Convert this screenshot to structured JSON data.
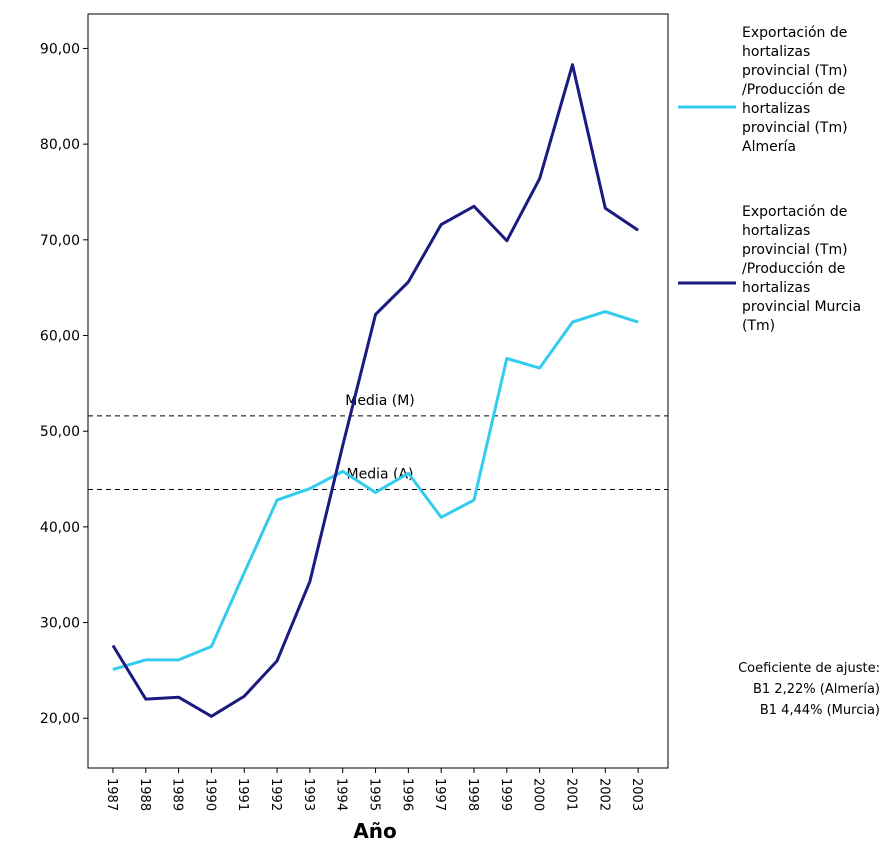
{
  "chart_data": {
    "type": "line",
    "x": [
      1987,
      1988,
      1989,
      1990,
      1991,
      1992,
      1993,
      1994,
      1995,
      1996,
      1997,
      1998,
      1999,
      2000,
      2001,
      2002,
      2003
    ],
    "series": [
      {
        "name": "Exportación de hortalizas provincial (Tm) /Producción de hortalizas provincial (Tm) Almería",
        "color": "#33ccee",
        "values": [
          25.1,
          26.1,
          26.1,
          27.5,
          35.2,
          42.8,
          44.0,
          45.8,
          43.6,
          45.6,
          41.0,
          42.8,
          57.6,
          56.6,
          61.4,
          62.5,
          61.4
        ]
      },
      {
        "name": "Exportación de hortalizas provincial (Tm) /Producción de hortalizas provincial Murcia (Tm)",
        "color": "#1a1a80",
        "values": [
          27.6,
          22.0,
          22.2,
          20.2,
          22.3,
          26.0,
          34.3,
          48.5,
          62.2,
          65.6,
          71.6,
          73.5,
          69.9,
          76.4,
          88.3,
          73.3,
          71.0
        ]
      }
    ],
    "reference_lines": [
      {
        "label": "Media (M)",
        "value": 51.6
      },
      {
        "label": "Media (A)",
        "value": 43.9
      }
    ],
    "xlabel": "Año",
    "xlim": [
      1986.24,
      2003.91
    ],
    "xticks": [
      1987,
      1988,
      1989,
      1990,
      1991,
      1992,
      1993,
      1994,
      1995,
      1996,
      1997,
      1998,
      1999,
      2000,
      2001,
      2002,
      2003
    ],
    "ylim": [
      14.8,
      93.6
    ],
    "yticks": [
      {
        "value": 20,
        "label": "20,00"
      },
      {
        "value": 30,
        "label": "30,00"
      },
      {
        "value": 40,
        "label": "40,00"
      },
      {
        "value": 50,
        "label": "50,00"
      },
      {
        "value": 60,
        "label": "60,00"
      },
      {
        "value": 70,
        "label": "70,00"
      },
      {
        "value": 80,
        "label": "80,00"
      },
      {
        "value": 90,
        "label": "90,00"
      }
    ],
    "annotations": [
      "Coeficiente de ajuste:",
      "B1  2,22% (Almería)",
      "B1 4,44% (Murcia)"
    ]
  }
}
